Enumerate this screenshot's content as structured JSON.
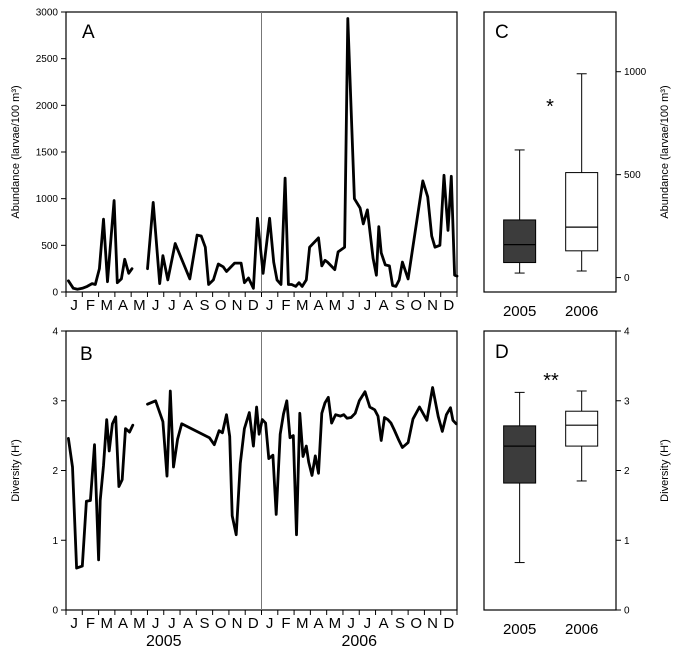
{
  "chart_data": [
    {
      "panel": "A",
      "type": "line",
      "ylabel": "Abundance (larvae/100 m³)",
      "ylim": [
        0,
        3000
      ],
      "yticks": [
        0,
        500,
        1000,
        1500,
        2000,
        2500,
        3000
      ],
      "xlim": [
        0,
        24
      ],
      "month_labels": [
        "J",
        "F",
        "M",
        "A",
        "M",
        "J",
        "J",
        "A",
        "S",
        "O",
        "N",
        "D",
        "J",
        "F",
        "M",
        "A",
        "M",
        "J",
        "J",
        "A",
        "S",
        "O",
        "N",
        "D"
      ],
      "year_labels": [
        "2005",
        "2006"
      ],
      "divider_x": 12,
      "segments": [
        {
          "x": [
            0.15,
            0.45,
            0.7,
            1.0,
            1.3,
            1.6,
            1.8,
            2.05,
            2.3,
            2.55,
            2.75,
            2.95,
            3.15,
            3.4,
            3.6,
            3.85,
            4.05
          ],
          "y": [
            120,
            40,
            30,
            40,
            60,
            90,
            80,
            250,
            780,
            110,
            550,
            980,
            100,
            140,
            350,
            200,
            250
          ]
        },
        {
          "x": [
            5.0,
            5.35,
            5.75,
            5.95,
            6.25,
            6.7,
            7.6,
            8.05,
            8.3,
            8.55,
            8.75,
            9.05,
            9.35,
            9.65,
            9.85,
            10.35,
            10.75,
            10.95,
            11.2,
            11.5,
            11.75,
            12.1,
            12.5,
            12.75,
            12.95,
            13.2,
            13.45,
            13.65,
            13.85,
            14.1,
            14.3,
            14.5,
            14.75,
            14.95,
            15.5,
            15.7,
            15.9,
            16.05,
            16.5,
            16.7,
            17.1,
            17.3,
            17.7,
            18.05,
            18.25,
            18.5,
            18.85,
            19.05,
            19.2,
            19.35,
            19.6,
            19.85,
            20.05,
            20.25,
            20.45,
            20.65,
            21.0,
            21.9,
            22.2,
            22.45,
            22.65,
            22.95,
            23.2,
            23.45,
            23.65,
            23.85,
            24.0
          ],
          "y": [
            250,
            960,
            90,
            390,
            130,
            520,
            140,
            610,
            600,
            480,
            80,
            130,
            300,
            270,
            220,
            310,
            310,
            100,
            150,
            40,
            790,
            200,
            790,
            320,
            130,
            80,
            1220,
            80,
            80,
            60,
            100,
            60,
            130,
            480,
            580,
            280,
            340,
            320,
            240,
            430,
            480,
            2930,
            1000,
            900,
            730,
            880,
            360,
            180,
            700,
            420,
            290,
            280,
            70,
            60,
            130,
            320,
            140,
            1190,
            1020,
            600,
            480,
            500,
            1250,
            660,
            1240,
            180,
            170
          ]
        }
      ]
    },
    {
      "panel": "B",
      "type": "line",
      "ylabel": "Diversity (H')",
      "ylim": [
        0,
        4
      ],
      "yticks": [
        0,
        1,
        2,
        3,
        4
      ],
      "xlim": [
        0,
        24
      ],
      "month_labels": [
        "J",
        "F",
        "M",
        "A",
        "M",
        "J",
        "J",
        "A",
        "S",
        "O",
        "N",
        "D",
        "J",
        "F",
        "M",
        "A",
        "M",
        "J",
        "J",
        "A",
        "S",
        "O",
        "N",
        "D"
      ],
      "year_labels": [
        "2005",
        "2006"
      ],
      "divider_x": 12,
      "segments": [
        {
          "x": [
            0.15,
            0.4,
            0.65,
            1.0,
            1.25,
            1.5,
            1.75,
            2.0,
            2.1,
            2.3,
            2.5,
            2.65,
            2.85,
            3.05,
            3.25,
            3.45,
            3.65,
            3.9,
            4.1
          ],
          "y": [
            2.46,
            2.05,
            0.6,
            0.63,
            1.56,
            1.57,
            2.37,
            0.72,
            1.57,
            2.07,
            2.73,
            2.28,
            2.67,
            2.77,
            1.77,
            1.87,
            2.6,
            2.55,
            2.65
          ]
        },
        {
          "x": [
            5.0,
            5.5,
            5.95,
            6.2,
            6.4,
            6.6,
            6.85,
            7.1,
            8.8,
            9.1,
            9.4,
            9.6,
            9.85,
            10.05,
            10.2,
            10.45,
            10.7,
            10.95,
            11.25,
            11.5,
            11.7,
            11.85,
            12.05,
            12.25,
            12.45,
            12.7,
            12.9,
            13.15,
            13.35,
            13.55,
            13.75,
            13.95,
            14.15,
            14.35,
            14.55,
            14.75,
            14.9,
            15.1,
            15.3,
            15.5,
            15.7,
            15.9,
            16.1,
            16.3,
            16.55,
            16.85,
            17.05,
            17.25,
            17.5,
            17.75,
            18.0,
            18.35,
            18.65,
            18.95,
            19.15,
            19.35,
            19.55,
            19.75,
            19.95,
            20.15,
            20.4,
            20.65,
            21.0,
            21.3,
            21.7,
            22.15,
            22.5,
            22.85,
            23.1,
            23.35,
            23.6,
            23.75,
            23.95
          ],
          "y": [
            2.95,
            3.0,
            2.7,
            1.92,
            3.14,
            2.05,
            2.45,
            2.67,
            2.47,
            2.37,
            2.57,
            2.54,
            2.8,
            2.49,
            1.35,
            1.08,
            2.1,
            2.6,
            2.83,
            2.35,
            2.91,
            2.52,
            2.73,
            2.68,
            2.17,
            2.22,
            1.37,
            2.52,
            2.81,
            3.0,
            2.47,
            2.5,
            1.08,
            2.82,
            2.2,
            2.35,
            2.12,
            1.93,
            2.21,
            1.96,
            2.82,
            2.97,
            3.05,
            2.68,
            2.8,
            2.78,
            2.8,
            2.75,
            2.76,
            2.82,
            3.0,
            3.13,
            2.91,
            2.87,
            2.78,
            2.43,
            2.76,
            2.73,
            2.68,
            2.58,
            2.45,
            2.33,
            2.4,
            2.74,
            2.91,
            2.72,
            3.19,
            2.77,
            2.56,
            2.8,
            2.9,
            2.72,
            2.67
          ]
        }
      ]
    },
    {
      "panel": "C",
      "type": "box",
      "ylabel": "Abundance (larvae/100 m³)",
      "ylim": [
        -70,
        1290
      ],
      "yticks": [
        0,
        500,
        1000
      ],
      "categories": [
        "2005",
        "2006"
      ],
      "fills": [
        "#3c3c3c",
        "#ffffff"
      ],
      "boxes": [
        {
          "whisker_low": 22,
          "q1": 73,
          "median": 160,
          "q3": 280,
          "whisker_high": 620
        },
        {
          "whisker_low": 32,
          "q1": 130,
          "median": 245,
          "q3": 510,
          "whisker_high": 990
        }
      ],
      "significance": "*"
    },
    {
      "panel": "D",
      "type": "box",
      "ylabel": "Diversity (H')",
      "ylim": [
        0,
        4
      ],
      "yticks": [
        0,
        1,
        2,
        3,
        4
      ],
      "categories": [
        "2005",
        "2006"
      ],
      "fills": [
        "#3c3c3c",
        "#ffffff"
      ],
      "boxes": [
        {
          "whisker_low": 0.68,
          "q1": 1.82,
          "median": 2.35,
          "q3": 2.64,
          "whisker_high": 3.12
        },
        {
          "whisker_low": 1.85,
          "q1": 2.35,
          "median": 2.65,
          "q3": 2.85,
          "whisker_high": 3.14
        }
      ],
      "significance": "**"
    }
  ]
}
